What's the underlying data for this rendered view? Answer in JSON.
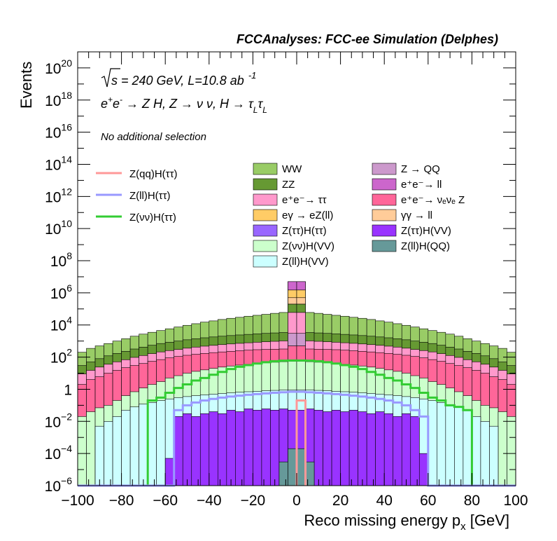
{
  "chart_data": {
    "type": "histogram-stacked",
    "title": "FCCAnalyses: FCC-ee Simulation (Delphes)",
    "xlabel": "Reco missing energy p_x [GeV]",
    "xlabel_main": "Reco missing energy p",
    "xlabel_sub": "x",
    "xlabel_unit": " [GeV]",
    "ylabel": "Events",
    "x_range": [
      -100,
      100
    ],
    "y_range": [
      1e-06,
      1e+21
    ],
    "y_scale": "log",
    "x_ticks": [
      "−100",
      "−80",
      "−60",
      "−40",
      "−20",
      "0",
      "20",
      "40",
      "60",
      "80",
      "100"
    ],
    "y_ticks": [
      {
        "base": "10",
        "exp": "−6",
        "value": 1e-06
      },
      {
        "base": "10",
        "exp": "−4",
        "value": 0.0001
      },
      {
        "base": "10",
        "exp": "−2",
        "value": 0.01
      },
      {
        "base": "1",
        "exp": "",
        "value": 1
      },
      {
        "base": "10",
        "exp": "2",
        "value": 100.0
      },
      {
        "base": "10",
        "exp": "4",
        "value": 10000.0
      },
      {
        "base": "10",
        "exp": "6",
        "value": 1000000.0
      },
      {
        "base": "10",
        "exp": "8",
        "value": 100000000.0
      },
      {
        "base": "10",
        "exp": "10",
        "value": 10000000000.0
      },
      {
        "base": "10",
        "exp": "12",
        "value": 1000000000000.0
      },
      {
        "base": "10",
        "exp": "14",
        "value": 100000000000000.0
      },
      {
        "base": "10",
        "exp": "16",
        "value": 1e+16
      },
      {
        "base": "10",
        "exp": "18",
        "value": 1e+18
      },
      {
        "base": "10",
        "exp": "20",
        "value": 1e+20
      }
    ],
    "annotations": {
      "energy_sqrt": "s",
      "energy_rest": " = 240 GeV, L=10.8 ab",
      "energy_exp": "-1",
      "process_a": "e",
      "process_a_sup": "+",
      "process_b": "e",
      "process_b_sup": "-",
      "process_rest": " → Z H, Z  → ν ν, H  → τ",
      "process_sub1": "L",
      "process_tau2": "τ",
      "process_sub2": "L",
      "selection": "No additional selection"
    },
    "series_lines": [
      {
        "name": "Z(qq)H(ττ)",
        "color": "#ff9999"
      },
      {
        "name": "Z(ll)H(ττ)",
        "color": "#9999ff"
      },
      {
        "name": "Z(νν)H(ττ)",
        "color": "#33cc33"
      }
    ],
    "series_filled": [
      {
        "name": "WW",
        "color": "#99cc66"
      },
      {
        "name": "ZZ",
        "color": "#669933"
      },
      {
        "name": "e⁺e⁻→ ττ",
        "color": "#ff99cc"
      },
      {
        "name": "eγ → eZ(ll)",
        "color": "#ffcc66"
      },
      {
        "name": "Z(ττ)H(ττ)",
        "color": "#9966ff"
      },
      {
        "name": "Z(νν)H(VV)",
        "color": "#ccffcc"
      },
      {
        "name": "Z(ll)H(VV)",
        "color": "#ccffff"
      },
      {
        "name": "Z → QQ",
        "color": "#cc99cc"
      },
      {
        "name": "e⁺e⁻→ ll",
        "color": "#cc66cc"
      },
      {
        "name": "e⁺e⁻→ νₑνₑ Z",
        "color": "#ff6699"
      },
      {
        "name": "γγ → ll",
        "color": "#ffcc99"
      },
      {
        "name": "Z(ττ)H(VV)",
        "color": "#9933ff"
      },
      {
        "name": "Z(ll)H(QQ)",
        "color": "#669999"
      }
    ],
    "bins": {
      "edges": [
        -100,
        -96,
        -92,
        -88,
        -84,
        -80,
        -76,
        -72,
        -68,
        -64,
        -60,
        -56,
        -52,
        -48,
        -44,
        -40,
        -36,
        -32,
        -28,
        -24,
        -20,
        -16,
        -12,
        -8,
        -4,
        0,
        4,
        8,
        12,
        16,
        20,
        24,
        28,
        32,
        36,
        40,
        44,
        48,
        52,
        56,
        60,
        64,
        68,
        72,
        76,
        80,
        84,
        88,
        92,
        96,
        100
      ],
      "stack_top": [
        200,
        350,
        500,
        700,
        1000,
        1400,
        2000,
        2700,
        3500,
        4500,
        5800,
        7500,
        9500,
        12000,
        15000,
        18000,
        22000,
        26000,
        30000,
        35000,
        40000,
        46000,
        53000,
        60000,
        5000000,
        5000000,
        60000,
        53000,
        46000,
        40000,
        35000,
        30000,
        26000,
        22000,
        18000,
        15000,
        12000,
        9500,
        7500,
        5800,
        4500,
        3500,
        2700,
        2000,
        1400,
        1000,
        700,
        500,
        350,
        200
      ],
      "zz_top": [
        30,
        50,
        80,
        120,
        170,
        230,
        320,
        420,
        550,
        700,
        850,
        1000,
        1200,
        1400,
        1600,
        1800,
        2000,
        2200,
        2400,
        2600,
        2800,
        3000,
        3200,
        3400,
        200000,
        200000,
        3400,
        3200,
        3000,
        2800,
        2600,
        2400,
        2200,
        2000,
        1800,
        1600,
        1400,
        1200,
        1000,
        850,
        700,
        550,
        420,
        320,
        230,
        170,
        120,
        80,
        50,
        30
      ],
      "ee_nunuz_top": [
        2,
        4,
        6,
        10,
        15,
        22,
        30,
        40,
        55,
        70,
        90,
        110,
        130,
        150,
        170,
        190,
        210,
        230,
        250,
        270,
        290,
        300,
        310,
        320,
        500,
        500,
        320,
        310,
        300,
        290,
        270,
        250,
        230,
        210,
        190,
        170,
        150,
        130,
        110,
        90,
        70,
        55,
        40,
        30,
        22,
        15,
        10,
        6,
        4,
        2
      ],
      "znunu_hvv_top": [
        0.02,
        0.04,
        0.07,
        0.1,
        0.2,
        0.4,
        0.7,
        1.2,
        2,
        3,
        5,
        7,
        10,
        13,
        16,
        20,
        24,
        28,
        32,
        36,
        40,
        44,
        48,
        52,
        55,
        55,
        52,
        48,
        44,
        40,
        36,
        32,
        28,
        24,
        20,
        16,
        13,
        10,
        7,
        5,
        3,
        2,
        1.2,
        0.7,
        0.4,
        0.2,
        0.1,
        0.07,
        0.04,
        0.02
      ],
      "zll_hvv_top": [
        1e-06,
        1e-06,
        0.005,
        0.01,
        0.02,
        0.05,
        0.08,
        0.12,
        0.15,
        0.2,
        0.25,
        0.3,
        0.35,
        0.4,
        0.45,
        0.5,
        0.55,
        0.6,
        0.65,
        0.7,
        0.75,
        0.8,
        0.85,
        0.9,
        0.9,
        0.9,
        0.9,
        0.85,
        0.8,
        0.75,
        0.7,
        0.65,
        0.6,
        0.55,
        0.5,
        0.45,
        0.4,
        0.35,
        0.3,
        0.25,
        0.2,
        0.15,
        0.1,
        0.08,
        0.05,
        0.02,
        0.01,
        0.005,
        1e-06,
        1e-06
      ],
      "ztautau_hvv_top": [
        1e-06,
        1e-06,
        1e-06,
        1e-06,
        1e-06,
        1e-06,
        1e-06,
        1e-06,
        1e-06,
        1e-06,
        5e-05,
        0.02,
        0.03,
        0.02,
        0.03,
        0.04,
        0.03,
        0.05,
        0.04,
        0.06,
        0.05,
        0.06,
        0.05,
        0.06,
        0.05,
        0.05,
        0.06,
        0.05,
        0.04,
        0.05,
        0.04,
        0.05,
        0.04,
        0.03,
        0.04,
        0.03,
        0.02,
        0.03,
        0.02,
        0.0001,
        1e-06,
        1e-06,
        1e-06,
        1e-06,
        1e-06,
        1e-06,
        1e-06,
        1e-06,
        1e-06,
        1e-06
      ],
      "z_qq_peak": [
        {
          "x0": -4,
          "x1": 0,
          "y": 3000
        },
        {
          "x0": 0,
          "x1": 4,
          "y": 3000
        }
      ],
      "zll_hqq_top": [
        1e-06,
        1e-06,
        1e-06,
        1e-06,
        1e-06,
        1e-06,
        1e-06,
        1e-06,
        1e-06,
        1e-06,
        1e-06,
        1e-06,
        1e-06,
        1e-06,
        1e-06,
        1e-06,
        1e-06,
        1e-06,
        1e-06,
        1e-06,
        1e-06,
        1e-06,
        1e-06,
        3e-05,
        0.0002,
        0.0002,
        3e-05,
        1e-06,
        1e-06,
        1e-06,
        1e-06,
        1e-06,
        1e-06,
        1e-06,
        1e-06,
        1e-06,
        1e-06,
        1e-06,
        1e-06,
        1e-06,
        1e-06,
        1e-06,
        1e-06,
        1e-06,
        1e-06,
        1e-06,
        1e-06,
        1e-06,
        1e-06,
        1e-06
      ],
      "line_znunu": [
        1e-06,
        1e-06,
        1e-06,
        1e-06,
        1e-06,
        1e-06,
        1e-06,
        1e-06,
        0.2,
        0.3,
        0.6,
        1.2,
        2,
        3.5,
        5,
        8,
        12,
        18,
        25,
        32,
        40,
        48,
        55,
        60,
        62,
        62,
        60,
        55,
        48,
        40,
        32,
        25,
        18,
        12,
        8,
        5,
        3.5,
        2,
        1.2,
        0.6,
        0.3,
        0.2,
        0.1,
        0.08,
        0.05,
        1e-06,
        1e-06,
        1e-06,
        1e-06,
        1e-06
      ],
      "line_zll": [
        1e-06,
        1e-06,
        1e-06,
        1e-06,
        1e-06,
        1e-06,
        1e-06,
        1e-06,
        1e-06,
        1e-06,
        1e-06,
        0.05,
        0.1,
        0.15,
        0.2,
        0.25,
        0.3,
        0.35,
        0.4,
        0.45,
        0.5,
        0.55,
        0.6,
        0.65,
        0.7,
        0.7,
        0.65,
        0.6,
        0.55,
        0.5,
        0.45,
        0.4,
        0.35,
        0.3,
        0.25,
        0.2,
        0.15,
        0.1,
        0.05,
        0.02,
        1e-06,
        1e-06,
        1e-06,
        1e-06,
        1e-06,
        1e-06,
        1e-06,
        1e-06,
        1e-06,
        1e-06
      ],
      "line_zqq": [
        {
          "x0": 0,
          "x1": 4,
          "y": 0.2
        }
      ]
    }
  }
}
